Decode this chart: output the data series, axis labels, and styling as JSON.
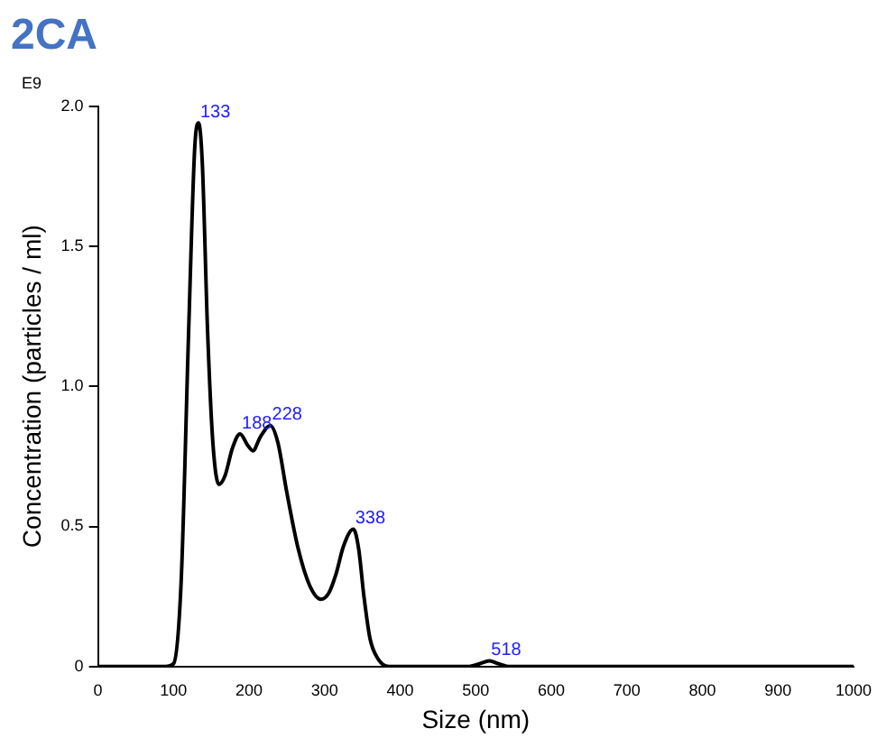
{
  "chart_data": {
    "type": "line",
    "title": "2CA",
    "xlabel": "Size (nm)",
    "ylabel": "Concentration (particles / ml)",
    "x": [
      0,
      90,
      100,
      110,
      120,
      128,
      133,
      138,
      145,
      152,
      160,
      168,
      178,
      188,
      198,
      205,
      215,
      228,
      238,
      250,
      265,
      280,
      295,
      305,
      315,
      325,
      338,
      345,
      352,
      360,
      370,
      385,
      490,
      505,
      518,
      530,
      545,
      1000
    ],
    "series": [
      {
        "color": "#000000",
        "values": [
          0,
          0,
          0.01,
          0.3,
          1.2,
          1.85,
          1.94,
          1.8,
          1.2,
          0.8,
          0.65,
          0.68,
          0.78,
          0.83,
          0.79,
          0.77,
          0.82,
          0.86,
          0.8,
          0.62,
          0.42,
          0.29,
          0.24,
          0.26,
          0.33,
          0.43,
          0.49,
          0.42,
          0.25,
          0.1,
          0.03,
          0,
          0,
          0.01,
          0.02,
          0.01,
          0,
          0
        ]
      }
    ],
    "xlim": [
      0,
      1000
    ],
    "xticks": [
      0,
      100,
      200,
      300,
      400,
      500,
      600,
      700,
      800,
      900,
      1000
    ],
    "ylim": [
      0,
      2.0
    ],
    "yticks": [
      0,
      {
        "value": 0.5,
        "label": "0.5"
      },
      {
        "value": 1,
        "label": "1.0"
      },
      {
        "value": 1.5,
        "label": "1.5"
      },
      {
        "value": 2,
        "label": "2.0"
      }
    ],
    "annotations": [
      "E9",
      {
        "text": "133",
        "x": 133,
        "y": 1.94
      },
      {
        "text": "188",
        "x": 188,
        "y": 0.83
      },
      {
        "text": "228",
        "x": 228,
        "y": 0.86
      },
      {
        "text": "338",
        "x": 338,
        "y": 0.49
      },
      {
        "text": "518",
        "x": 518,
        "y": 0.02
      }
    ],
    "grid": false,
    "legend": false,
    "marker": "none",
    "line_style": "solid"
  }
}
